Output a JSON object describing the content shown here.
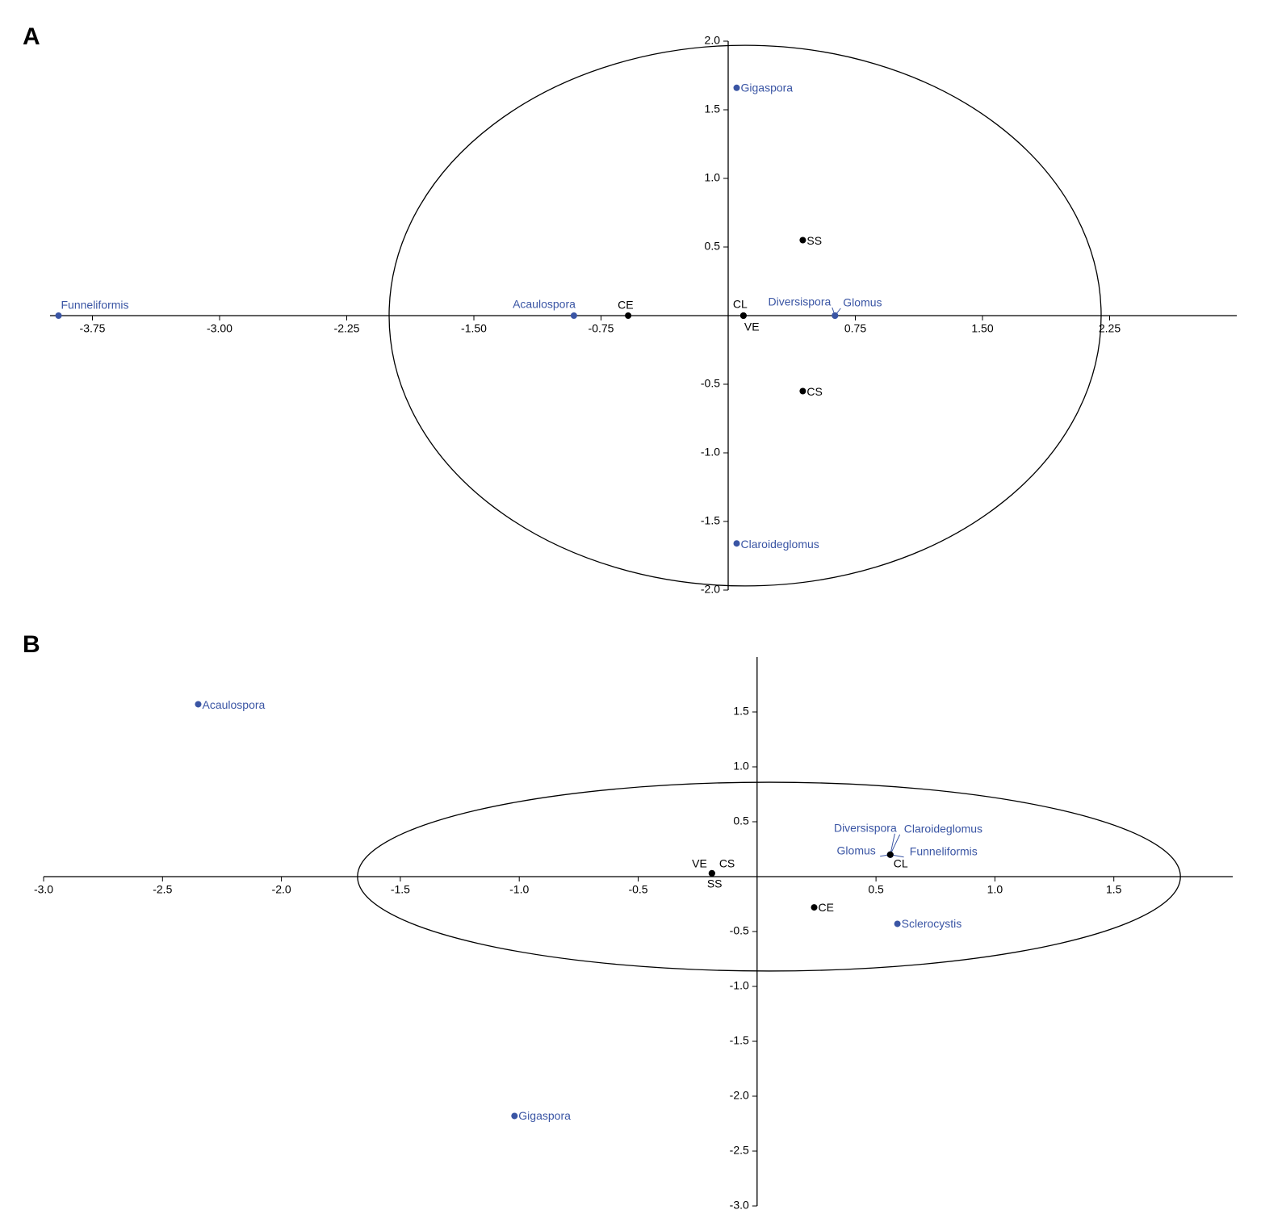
{
  "chart_data": [
    {
      "type": "scatter",
      "panel": "A",
      "xlim": [
        -4.0,
        3.0
      ],
      "ylim": [
        -2.0,
        2.0
      ],
      "xticks": [
        -3.75,
        {
          "value": -3,
          "label": "-3.00"
        },
        -2.25,
        {
          "value": -1.5,
          "label": "-1.50"
        },
        -0.75,
        0.75,
        {
          "value": 1.5,
          "label": "1.50"
        },
        2.25
      ],
      "yticks": [
        {
          "value": -2,
          "label": "-2.0"
        },
        -1.5,
        {
          "value": -1,
          "label": "-1.0"
        },
        -0.5,
        0.5,
        {
          "value": 1,
          "label": "1.0"
        },
        1.5,
        {
          "value": 2,
          "label": "2.0"
        }
      ],
      "series": [
        {
          "color": "#3a55a4",
          "labels": [
            "Funneliformis",
            "Acaulospora",
            "Gigaspora",
            "Claroideglomus",
            "Diversispora",
            "Glomus"
          ],
          "x": [
            -3.95,
            -0.91,
            0.05,
            0.05,
            0.63,
            0.63
          ],
          "values": [
            0,
            0,
            1.66,
            -1.66,
            0,
            0
          ]
        },
        {
          "color": "#000000",
          "labels": [
            "CE",
            "CL",
            "VE",
            "SS",
            "CS"
          ],
          "x": [
            -0.59,
            0.09,
            0.09,
            0.44,
            0.44
          ],
          "values": [
            0,
            0,
            0,
            0.55,
            -0.55
          ]
        }
      ],
      "ellipse": {
        "cx": 0.1,
        "cy": 0.0,
        "rx": 2.1,
        "ry": 1.97
      }
    },
    {
      "type": "scatter",
      "panel": "B",
      "xlim": [
        -3.0,
        2.0
      ],
      "ylim": [
        -3.0,
        2.0
      ],
      "xticks": [
        {
          "value": -3,
          "label": "-3.0"
        },
        -2.5,
        {
          "value": -2,
          "label": "-2.0"
        },
        -1.5,
        {
          "value": -1,
          "label": "-1.0"
        },
        -0.5,
        0.5,
        {
          "value": 1,
          "label": "1.0"
        },
        1.5
      ],
      "yticks": [
        {
          "value": -3,
          "label": "-3.0"
        },
        -2.5,
        {
          "value": -2,
          "label": "-2.0"
        },
        -1.5,
        {
          "value": -1,
          "label": "-1.0"
        },
        -0.5,
        0.5,
        {
          "value": 1,
          "label": "1.0"
        },
        1.5
      ],
      "series": [
        {
          "color": "#3a55a4",
          "labels": [
            "Acaulospora",
            "Gigaspora",
            "Sclerocystis",
            "Diversispora",
            "Claroideglomus",
            "Glomus",
            "Funneliformis"
          ],
          "x": [
            -2.35,
            -1.02,
            0.59,
            0.56,
            0.56,
            0.56,
            0.56
          ],
          "values": [
            1.57,
            -2.18,
            -0.43,
            0.2,
            0.2,
            0.2,
            0.2
          ]
        },
        {
          "color": "#000000",
          "labels": [
            "VE",
            "CS",
            "SS",
            "CE",
            "CL"
          ],
          "x": [
            -0.19,
            -0.19,
            -0.19,
            0.24,
            0.56
          ],
          "values": [
            0.03,
            0.03,
            0.03,
            -0.28,
            0.2
          ]
        }
      ],
      "ellipse": {
        "cx": 0.05,
        "cy": 0.0,
        "rx": 1.73,
        "ry": 0.86
      }
    }
  ]
}
